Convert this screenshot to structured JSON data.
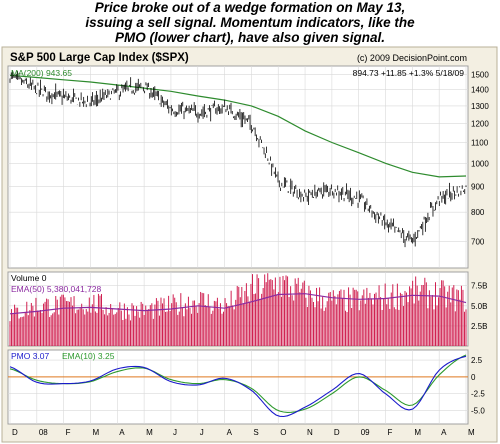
{
  "caption": {
    "line1": "Price broke out of a wedge formation on May 13,",
    "line2": "issuing a sell signal.  Momentum indicators, like the",
    "line3": "PMO (lower chart), have also given signal."
  },
  "chart_data": [
    {
      "type": "line",
      "panel": "price",
      "title": "S&P 500 Large Cap Index ($SPX)",
      "copyright": "(c) 2009 DecisionPoint.com",
      "quote": "894.73  +11.85  +1.3%  5/18/09",
      "ma_label": "MA(200) 943.65",
      "yticks": [
        700,
        800,
        900,
        1000,
        1100,
        1200,
        1300,
        1400,
        1500
      ],
      "ytick_labels": [
        "700",
        "800",
        "900",
        "1000",
        "1100",
        "1200",
        "1300",
        "1400",
        "1500"
      ],
      "ylim": [
        620,
        1560
      ],
      "scale": "log",
      "grid": true,
      "x": [
        "Dec-07",
        "Jan-08",
        "Feb-08",
        "Mar-08",
        "Apr-08",
        "May-08",
        "Jun-08",
        "Jul-08",
        "Aug-08",
        "Sep-08",
        "Oct-08",
        "Nov-08",
        "Dec-08",
        "Jan-09",
        "Feb-09",
        "Mar-09",
        "Apr-09",
        "May-18-09"
      ],
      "series": [
        {
          "key": "price",
          "color": "#000000",
          "values": [
            1490,
            1400,
            1350,
            1320,
            1385,
            1420,
            1280,
            1260,
            1290,
            1200,
            920,
            860,
            890,
            850,
            760,
            700,
            850,
            895
          ]
        },
        {
          "key": "ma200",
          "color": "#2e8b2e",
          "values": [
            1495,
            1480,
            1465,
            1450,
            1430,
            1410,
            1390,
            1360,
            1335,
            1300,
            1240,
            1160,
            1100,
            1050,
            1000,
            960,
            940,
            944
          ]
        }
      ]
    },
    {
      "type": "bar",
      "panel": "volume",
      "title": "Volume 0",
      "ema_label": "EMA(50) 5,380,041,728",
      "yticks": [
        2.5,
        5.0,
        7.5
      ],
      "ytick_labels": [
        "2.5B",
        "5.0B",
        "7.5B"
      ],
      "ylim": [
        0,
        9.2
      ],
      "unit": "billions of shares",
      "x": [
        "Dec-07",
        "Jan-08",
        "Feb-08",
        "Mar-08",
        "Apr-08",
        "May-08",
        "Jun-08",
        "Jul-08",
        "Aug-08",
        "Sep-08",
        "Oct-08",
        "Nov-08",
        "Dec-08",
        "Jan-09",
        "Feb-09",
        "Mar-09",
        "Apr-09",
        "May-18-09"
      ],
      "series": [
        {
          "key": "volume",
          "color": "#d02050",
          "values": [
            3.9,
            5.0,
            5.0,
            5.3,
            4.6,
            4.4,
            4.9,
            5.7,
            4.9,
            6.9,
            7.9,
            6.4,
            5.6,
            5.7,
            6.1,
            6.7,
            6.4,
            5.8
          ]
        },
        {
          "key": "ema50",
          "color": "#8b2aa0",
          "values": [
            4.0,
            4.3,
            4.7,
            4.8,
            4.6,
            4.4,
            4.6,
            5.0,
            4.7,
            5.5,
            6.4,
            6.5,
            6.0,
            5.8,
            5.9,
            6.3,
            6.2,
            5.4
          ]
        }
      ]
    },
    {
      "type": "line",
      "panel": "pmo",
      "pmo_label": "PMO  3.07",
      "ema_label": "EMA(10)  3.25",
      "yticks": [
        -5.0,
        -2.5,
        0,
        2.5
      ],
      "ytick_labels": [
        "-5.0",
        "-2.5",
        "0",
        "2.5"
      ],
      "ylim": [
        -7.0,
        4.0
      ],
      "zero_line": 0,
      "x": [
        "Dec-07",
        "Jan-08",
        "Feb-08",
        "Mar-08",
        "Apr-08",
        "May-08",
        "Jun-08",
        "Jul-08",
        "Aug-08",
        "Sep-08",
        "Oct-08",
        "Nov-08",
        "Dec-08",
        "Jan-09",
        "Feb-09",
        "Mar-09",
        "Apr-09",
        "May-18-09"
      ],
      "series": [
        {
          "key": "pmo",
          "color": "#1a1acc",
          "values": [
            1.5,
            -0.8,
            -1.0,
            -0.6,
            1.2,
            1.4,
            -0.7,
            -1.2,
            -0.2,
            -2.0,
            -5.8,
            -4.5,
            -2.0,
            0.5,
            -2.5,
            -4.8,
            1.0,
            3.07
          ]
        },
        {
          "key": "ema10",
          "color": "#2e9a2e",
          "values": [
            1.2,
            -0.5,
            -1.0,
            -0.7,
            0.8,
            1.3,
            -0.4,
            -1.0,
            -0.4,
            -1.7,
            -5.0,
            -4.8,
            -2.5,
            0.0,
            -2.0,
            -4.2,
            0.3,
            3.25
          ]
        }
      ]
    }
  ],
  "x_axis": {
    "labels": [
      "D",
      "08",
      "F",
      "M",
      "A",
      "M",
      "J",
      "J",
      "A",
      "S",
      "O",
      "N",
      "D",
      "09",
      "F",
      "M",
      "A",
      "M"
    ]
  }
}
